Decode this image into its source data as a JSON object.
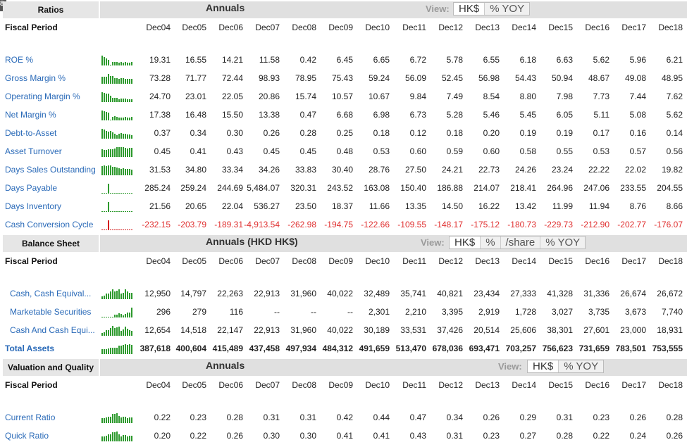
{
  "corner_label": "8",
  "years": [
    "Dec04",
    "Dec05",
    "Dec06",
    "Dec07",
    "Dec08",
    "Dec09",
    "Dec10",
    "Dec11",
    "Dec12",
    "Dec13",
    "Dec14",
    "Dec15",
    "Dec16",
    "Dec17",
    "Dec18"
  ],
  "fiscal_period_label": "Fiscal Period",
  "view_label": "View:",
  "colors": {
    "link": "#2a6ab8",
    "negative": "#e03030",
    "spark": "#2e9a2e",
    "spark_negative": "#d42020"
  },
  "sections": [
    {
      "label": "Ratios",
      "title": "Annuals",
      "view_options": [
        "HK$",
        "% YOY"
      ],
      "rows": [
        {
          "label": "ROE %",
          "values": [
            "19.31",
            "16.55",
            "14.21",
            "11.58",
            "0.42",
            "6.45",
            "6.65",
            "6.72",
            "5.78",
            "6.55",
            "6.18",
            "6.63",
            "5.62",
            "5.96",
            "6.21"
          ]
        },
        {
          "label": "Gross Margin %",
          "values": [
            "73.28",
            "71.77",
            "72.44",
            "98.93",
            "78.95",
            "75.43",
            "59.24",
            "56.09",
            "52.45",
            "56.98",
            "54.43",
            "50.94",
            "48.67",
            "49.08",
            "48.95"
          ]
        },
        {
          "label": "Operating Margin %",
          "values": [
            "24.70",
            "23.01",
            "22.05",
            "20.86",
            "15.74",
            "10.57",
            "10.67",
            "9.84",
            "7.49",
            "8.54",
            "8.80",
            "7.98",
            "7.73",
            "7.44",
            "7.62"
          ]
        },
        {
          "label": "Net Margin %",
          "values": [
            "17.38",
            "16.48",
            "15.50",
            "13.38",
            "0.47",
            "6.68",
            "6.98",
            "6.73",
            "5.28",
            "5.46",
            "5.45",
            "6.05",
            "5.11",
            "5.08",
            "5.62"
          ]
        },
        {
          "label": "Debt-to-Asset",
          "values": [
            "0.37",
            "0.34",
            "0.30",
            "0.26",
            "0.28",
            "0.25",
            "0.18",
            "0.12",
            "0.18",
            "0.20",
            "0.19",
            "0.19",
            "0.17",
            "0.16",
            "0.14"
          ]
        },
        {
          "label": "Asset Turnover",
          "values": [
            "0.45",
            "0.41",
            "0.43",
            "0.45",
            "0.45",
            "0.48",
            "0.53",
            "0.60",
            "0.59",
            "0.60",
            "0.58",
            "0.55",
            "0.53",
            "0.57",
            "0.56"
          ]
        },
        {
          "label": "Days Sales Outstanding",
          "values": [
            "31.53",
            "34.80",
            "33.34",
            "34.26",
            "33.83",
            "30.40",
            "28.76",
            "27.50",
            "24.21",
            "22.73",
            "24.26",
            "23.24",
            "22.22",
            "22.02",
            "19.82"
          ]
        },
        {
          "label": "Days Payable",
          "values": [
            "285.24",
            "259.24",
            "244.69",
            "5,484.07",
            "320.31",
            "243.52",
            "163.08",
            "150.40",
            "186.88",
            "214.07",
            "218.41",
            "264.96",
            "247.06",
            "233.55",
            "204.55"
          ]
        },
        {
          "label": "Days Inventory",
          "values": [
            "21.56",
            "20.65",
            "22.04",
            "536.27",
            "23.50",
            "18.37",
            "11.66",
            "13.35",
            "14.50",
            "16.22",
            "13.42",
            "11.99",
            "11.94",
            "8.76",
            "8.66"
          ]
        },
        {
          "label": "Cash Conversion Cycle",
          "values": [
            "-232.15",
            "-203.79",
            "-189.31",
            "-4,913.54",
            "-262.98",
            "-194.75",
            "-122.66",
            "-109.55",
            "-148.17",
            "-175.12",
            "-180.73",
            "-229.73",
            "-212.90",
            "-202.77",
            "-176.07"
          ]
        }
      ]
    },
    {
      "label": "Balance Sheet",
      "title": "Annuals (HKD HK$)",
      "view_options": [
        "HK$",
        "%",
        "/share",
        "% YOY"
      ],
      "rows": [
        {
          "label": "Cash, Cash Equival...",
          "indent": true,
          "values": [
            "12,950",
            "14,797",
            "22,263",
            "22,913",
            "31,960",
            "40,022",
            "32,489",
            "35,741",
            "40,821",
            "23,434",
            "27,333",
            "41,328",
            "31,336",
            "26,674",
            "26,672"
          ]
        },
        {
          "label": "Marketable Securities",
          "indent": true,
          "values": [
            "296",
            "279",
            "116",
            "--",
            "--",
            "--",
            "2,301",
            "2,210",
            "3,395",
            "2,919",
            "1,728",
            "3,027",
            "3,735",
            "3,673",
            "7,740"
          ]
        },
        {
          "label": "Cash And Cash Equi...",
          "indent": true,
          "values": [
            "12,654",
            "14,518",
            "22,147",
            "22,913",
            "31,960",
            "40,022",
            "30,189",
            "33,531",
            "37,426",
            "20,514",
            "25,606",
            "38,301",
            "27,601",
            "23,000",
            "18,931"
          ]
        },
        {
          "label": "Total Assets",
          "bold": true,
          "values": [
            "387,618",
            "400,604",
            "415,489",
            "437,458",
            "497,934",
            "484,312",
            "491,659",
            "513,470",
            "678,036",
            "693,471",
            "703,257",
            "756,623",
            "731,659",
            "783,501",
            "753,555"
          ]
        }
      ]
    },
    {
      "label": "Valuation and Quality",
      "title": "Annuals",
      "view_options": [
        "HK$",
        "% YOY"
      ],
      "rows": [
        {
          "label": "Current Ratio",
          "values": [
            "0.22",
            "0.23",
            "0.28",
            "0.31",
            "0.31",
            "0.42",
            "0.44",
            "0.47",
            "0.34",
            "0.26",
            "0.29",
            "0.31",
            "0.23",
            "0.26",
            "0.28"
          ]
        },
        {
          "label": "Quick Ratio",
          "values": [
            "0.20",
            "0.22",
            "0.26",
            "0.30",
            "0.30",
            "0.41",
            "0.41",
            "0.43",
            "0.31",
            "0.23",
            "0.27",
            "0.28",
            "0.22",
            "0.24",
            "0.26"
          ]
        }
      ]
    }
  ]
}
